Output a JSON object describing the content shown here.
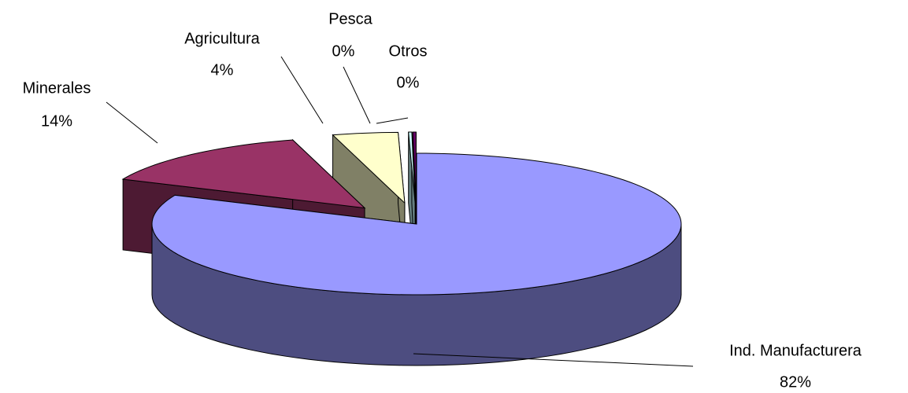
{
  "chart_data": {
    "type": "pie3d",
    "categories": [
      "Ind. Manufacturera",
      "Minerales",
      "Agricultura",
      "Pesca",
      "Otros"
    ],
    "values": [
      82,
      14,
      4,
      0.2,
      0.2
    ],
    "value_labels": [
      "82%",
      "14%",
      "4%",
      "0%",
      "0%"
    ],
    "colors": [
      "#9999ff",
      "#993366",
      "#ffffcc",
      "#ccffff",
      "#660066"
    ]
  }
}
